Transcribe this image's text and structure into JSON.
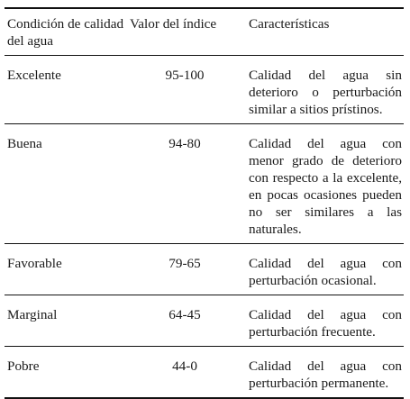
{
  "table": {
    "headers": [
      "Condición de calidad del agua",
      "Valor del índice",
      "Características"
    ],
    "rows": [
      {
        "condition": "Excelente",
        "index": "95-100",
        "characteristics": "Calidad del agua sin deterioro o perturbación similar a sitios prístinos."
      },
      {
        "condition": "Buena",
        "index": "94-80",
        "characteristics": "Calidad del agua con menor grado de deterioro con respecto a la excelente, en pocas ocasiones pueden no ser similares a las naturales."
      },
      {
        "condition": "Favorable",
        "index": "79-65",
        "characteristics": "Calidad del agua con perturbación ocasional."
      },
      {
        "condition": "Marginal",
        "index": "64-45",
        "characteristics": "Calidad del agua con perturbación frecuente."
      },
      {
        "condition": "Pobre",
        "index": "44-0",
        "characteristics": "Calidad del agua con perturbación permanente."
      }
    ]
  }
}
